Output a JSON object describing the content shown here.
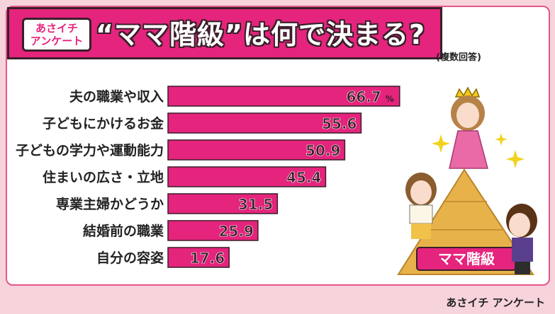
{
  "header": {
    "badge_line1": "あさイチ",
    "badge_line2": "アンケート",
    "title": "“ママ階級”は何で決まる?"
  },
  "note": "(複数回答)",
  "source": "あさイチ アンケート",
  "pyramid_label": "ママ階級",
  "value_suffix": "%",
  "colors": {
    "bar": "#e5247d",
    "bar_border": "#3a1f2a",
    "header": "#e5247d",
    "background": "#f7d3dc"
  },
  "chart_data": {
    "type": "bar",
    "orientation": "horizontal",
    "categories": [
      "夫の職業や収入",
      "子どもにかけるお金",
      "子どもの学力や運動能力",
      "住まいの広さ・立地",
      "専業主婦かどうか",
      "結婚前の職業",
      "自分の容姿"
    ],
    "values": [
      66.7,
      55.6,
      50.9,
      45.4,
      31.5,
      25.9,
      17.6
    ],
    "value_labels": [
      "66.7",
      "55.6",
      "50.9",
      "45.4",
      "31.5",
      "25.9",
      "17.6"
    ],
    "xlim": [
      0,
      100
    ]
  }
}
